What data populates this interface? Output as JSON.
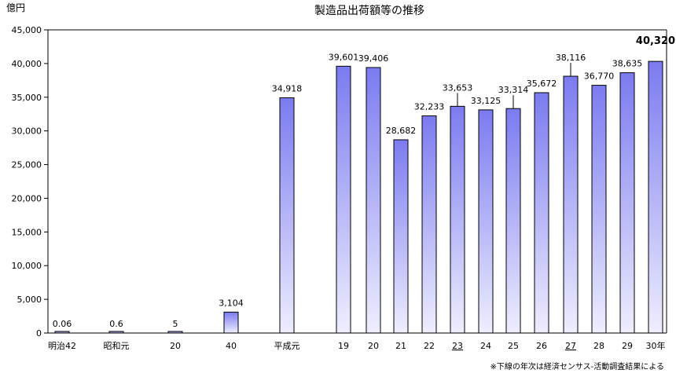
{
  "chart_data": {
    "type": "bar",
    "title": "製造品出荷額等の推移",
    "unit_label": "億円",
    "ylim": [
      0,
      45000
    ],
    "yticks": [
      0,
      5000,
      10000,
      15000,
      20000,
      25000,
      30000,
      35000,
      40000,
      45000
    ],
    "ytick_labels": [
      "0",
      "5,000",
      "10,000",
      "15,000",
      "20,000",
      "25,000",
      "30,000",
      "35,000",
      "40,000",
      "45,000"
    ],
    "categories": [
      "明治42",
      "昭和元",
      "20",
      "40",
      "平成元",
      "19",
      "20",
      "21",
      "22",
      "23",
      "24",
      "25",
      "26",
      "27",
      "28",
      "29",
      "30年"
    ],
    "values": [
      0.06,
      0.6,
      5,
      3104,
      34918,
      39601,
      39406,
      28682,
      32233,
      33653,
      33125,
      33314,
      35672,
      38116,
      36770,
      38635,
      40320
    ],
    "value_labels": [
      "0.06",
      "0.6",
      "5",
      "3,104",
      "34,918",
      "39,601",
      "39,406",
      "28,682",
      "32,233",
      "33,653",
      "33,125",
      "33,314",
      "35,672",
      "38,116",
      "36,770",
      "38,635",
      "40,320"
    ],
    "underlined_categories": [
      "23",
      "27"
    ],
    "highlighted_value": "40,320",
    "grid": false,
    "bar_color_top": "#7b7bf0",
    "bar_color_bottom": "#eeeefe",
    "note": "※下線の年次は経済センサス‐活動調査結果による"
  }
}
